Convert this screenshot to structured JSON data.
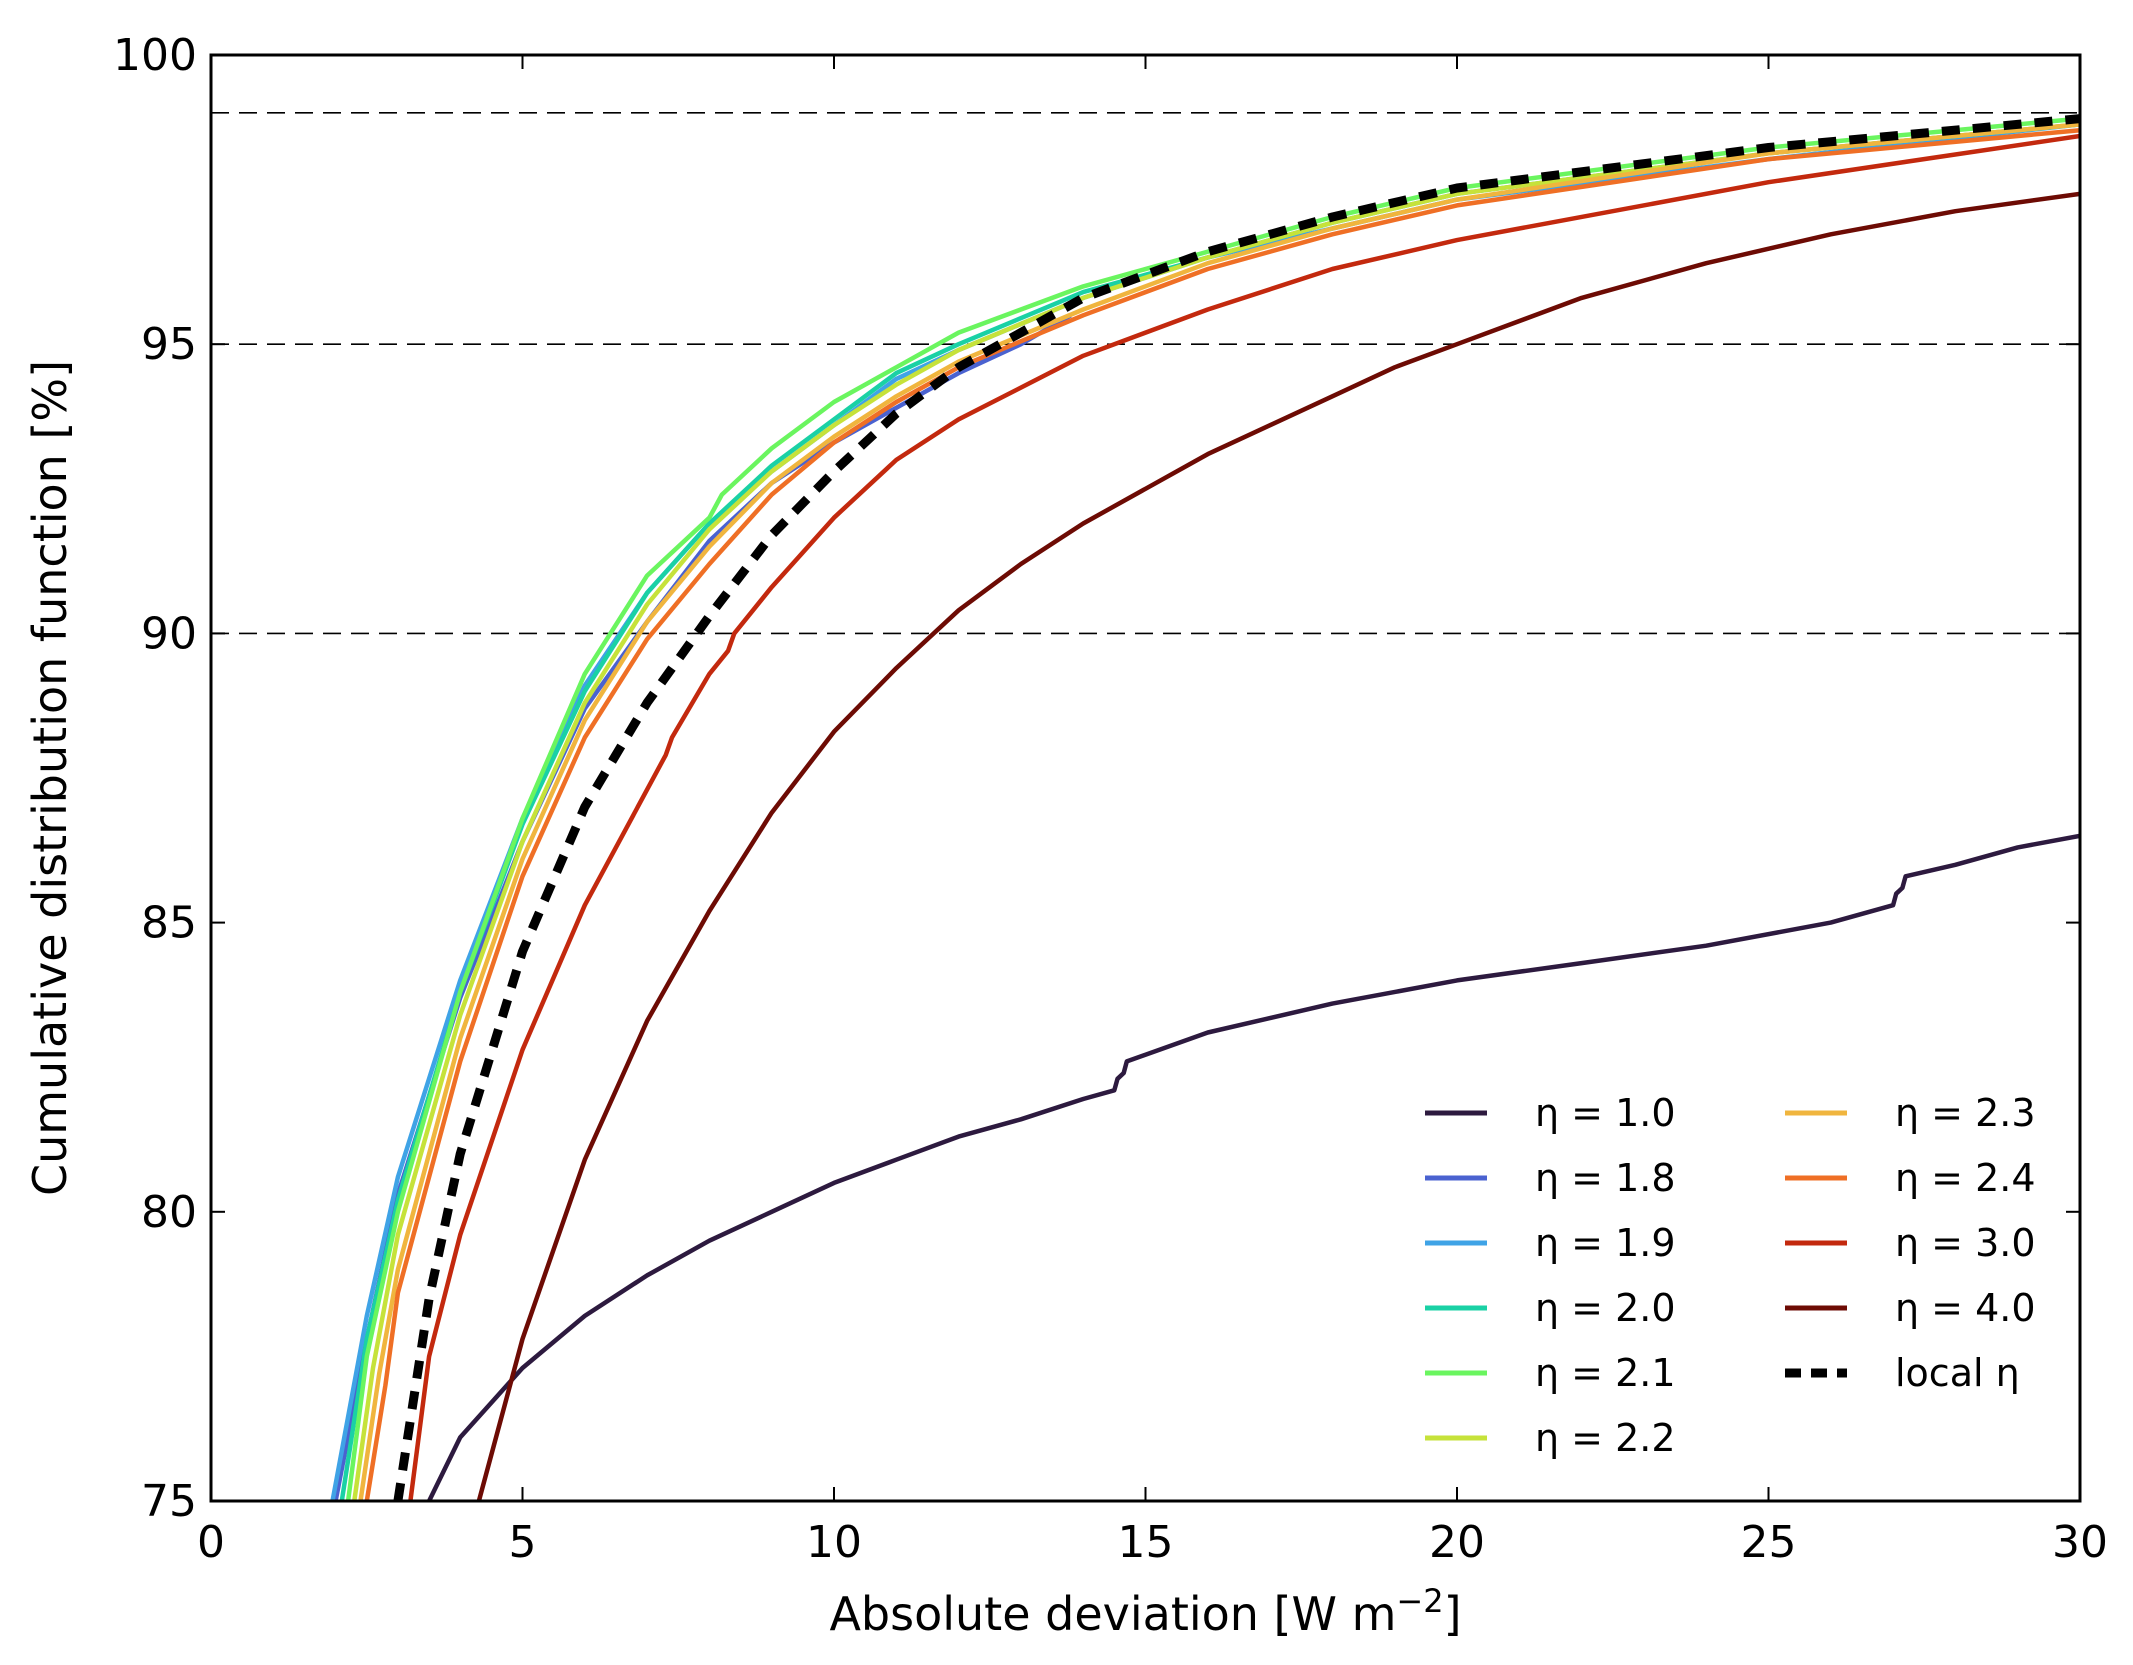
{
  "chart_data": {
    "type": "line",
    "title": "",
    "xlabel": "Absolute deviation [W m",
    "xlabel_superscript": "−2",
    "xlabel_suffix": "]",
    "ylabel": "Cumulative distribution function [%]",
    "xlim": [
      0,
      30
    ],
    "ylim": [
      75,
      100
    ],
    "xticks": [
      "0",
      "5",
      "10",
      "15",
      "20",
      "25",
      "30"
    ],
    "yticks": [
      "75",
      "80",
      "85",
      "90",
      "95",
      "100"
    ],
    "reference_lines": [
      90,
      95,
      99
    ],
    "grid": false,
    "legend_position": "lower-right",
    "legend_columns": 2,
    "series": [
      {
        "name": "η = 1.0",
        "color": "#2d1a3f",
        "dash": "solid",
        "x": [
          3.5,
          4,
          5,
          6,
          7,
          8,
          9,
          10,
          11,
          12,
          13,
          14,
          14.5,
          14.55,
          14.65,
          14.7,
          16,
          18,
          20,
          22,
          24,
          26,
          27,
          27.05,
          27.15,
          27.2,
          28,
          29,
          30
        ],
        "y": [
          75,
          76.1,
          77.3,
          78.2,
          78.9,
          79.5,
          80.0,
          80.5,
          80.9,
          81.3,
          81.6,
          81.95,
          82.1,
          82.3,
          82.4,
          82.6,
          83.1,
          83.6,
          84.0,
          84.3,
          84.6,
          85.0,
          85.3,
          85.5,
          85.6,
          85.8,
          86.0,
          86.3,
          86.5
        ]
      },
      {
        "name": "η = 1.8",
        "color": "#4a62d0",
        "dash": "solid",
        "x": [
          2.0,
          2.5,
          3,
          4,
          5,
          6,
          7,
          8,
          9,
          10,
          11,
          12,
          13,
          13.8
        ],
        "y": [
          75,
          77.8,
          80.3,
          83.7,
          86.4,
          88.7,
          90.2,
          91.6,
          92.6,
          93.3,
          93.9,
          94.5,
          95.0,
          95.5
        ]
      },
      {
        "name": "η = 1.9",
        "color": "#3fa3e6",
        "dash": "solid",
        "x": [
          1.95,
          2.5,
          3,
          4,
          5,
          6,
          7,
          8,
          9,
          10,
          11,
          12,
          14,
          16,
          18,
          20,
          25,
          30
        ],
        "y": [
          75,
          78.2,
          80.6,
          84.0,
          86.8,
          89.1,
          90.7,
          91.9,
          92.8,
          93.6,
          94.4,
          94.9,
          95.8,
          96.5,
          97.0,
          97.5,
          98.2,
          98.8
        ]
      },
      {
        "name": "η = 2.0",
        "color": "#1ad1a5",
        "dash": "solid",
        "x": [
          2.1,
          2.5,
          3,
          4,
          5,
          6,
          7,
          8,
          9,
          10,
          11,
          12,
          14,
          16,
          18,
          20,
          25,
          30
        ],
        "y": [
          75,
          77.8,
          80.2,
          83.8,
          86.7,
          89.0,
          90.7,
          91.9,
          92.9,
          93.7,
          94.5,
          95.0,
          95.9,
          96.5,
          97.1,
          97.6,
          98.3,
          98.8
        ]
      },
      {
        "name": "η = 2.1",
        "color": "#6af55f",
        "dash": "solid",
        "x": [
          2.2,
          2.5,
          3,
          4,
          5,
          6,
          7,
          8,
          8.2,
          9,
          10,
          11,
          12,
          14,
          16,
          18,
          20,
          25,
          30
        ],
        "y": [
          75,
          77.5,
          80.0,
          83.8,
          86.8,
          89.3,
          91.0,
          92.0,
          92.4,
          93.2,
          94.0,
          94.6,
          95.2,
          96.0,
          96.6,
          97.2,
          97.7,
          98.4,
          98.9
        ]
      },
      {
        "name": "η = 2.2",
        "color": "#c6e23a",
        "dash": "solid",
        "x": [
          2.3,
          2.6,
          3,
          4,
          5,
          6,
          7,
          8,
          9,
          10,
          11,
          12,
          14,
          16,
          18,
          20,
          25,
          30
        ],
        "y": [
          75,
          77.3,
          79.6,
          83.4,
          86.4,
          88.8,
          90.5,
          91.8,
          92.8,
          93.6,
          94.3,
          94.9,
          95.8,
          96.5,
          97.1,
          97.6,
          98.3,
          98.8
        ]
      },
      {
        "name": "η = 2.3",
        "color": "#f0b53e",
        "dash": "solid",
        "x": [
          2.4,
          2.7,
          3,
          4,
          5,
          6,
          7,
          8,
          9,
          10,
          11,
          12,
          14,
          16,
          18,
          20,
          25,
          30
        ],
        "y": [
          75,
          77.2,
          79.0,
          83.0,
          86.1,
          88.5,
          90.2,
          91.5,
          92.6,
          93.4,
          94.1,
          94.7,
          95.6,
          96.4,
          97.0,
          97.5,
          98.3,
          98.8
        ]
      },
      {
        "name": "η = 2.4",
        "color": "#ef6f25",
        "dash": "solid",
        "x": [
          2.5,
          2.8,
          3.0,
          4,
          5,
          6,
          7,
          8,
          9,
          10,
          11,
          12,
          14,
          16,
          18,
          20,
          25,
          30
        ],
        "y": [
          75,
          77.0,
          78.6,
          82.6,
          85.8,
          88.2,
          89.9,
          91.2,
          92.4,
          93.3,
          94.0,
          94.6,
          95.5,
          96.3,
          96.9,
          97.4,
          98.2,
          98.7
        ]
      },
      {
        "name": "η = 3.0",
        "color": "#c3290e",
        "dash": "solid",
        "x": [
          3.2,
          3.5,
          4,
          5,
          6,
          7,
          7.3,
          7.4,
          8,
          8.3,
          8.4,
          9,
          10,
          11,
          12,
          14,
          16,
          18,
          20,
          25,
          30
        ],
        "y": [
          75,
          77.5,
          79.6,
          82.8,
          85.3,
          87.3,
          87.9,
          88.2,
          89.3,
          89.7,
          90.0,
          90.8,
          92.0,
          93.0,
          93.7,
          94.8,
          95.6,
          96.3,
          96.8,
          97.8,
          98.6
        ]
      },
      {
        "name": "η = 4.0",
        "color": "#6d0b04",
        "dash": "solid",
        "x": [
          4.3,
          5,
          6,
          7,
          8,
          9,
          10,
          11,
          12,
          13,
          14,
          15,
          16,
          17,
          18,
          19,
          20,
          22,
          24,
          26,
          28,
          30
        ],
        "y": [
          75,
          77.8,
          80.9,
          83.3,
          85.2,
          86.9,
          88.3,
          89.4,
          90.4,
          91.2,
          91.9,
          92.5,
          93.1,
          93.6,
          94.1,
          94.6,
          95.0,
          95.8,
          96.4,
          96.9,
          97.3,
          97.6
        ]
      },
      {
        "name": "local η",
        "color": "#000000",
        "dash": "dashed",
        "x": [
          3.0,
          3.5,
          4,
          5,
          6,
          7,
          8,
          9,
          10,
          11,
          12,
          14,
          16,
          18,
          20,
          25,
          30
        ],
        "y": [
          75,
          78.5,
          81.0,
          84.5,
          87.0,
          88.8,
          90.3,
          91.7,
          92.8,
          93.8,
          94.6,
          95.8,
          96.6,
          97.2,
          97.7,
          98.4,
          98.9
        ]
      }
    ]
  }
}
